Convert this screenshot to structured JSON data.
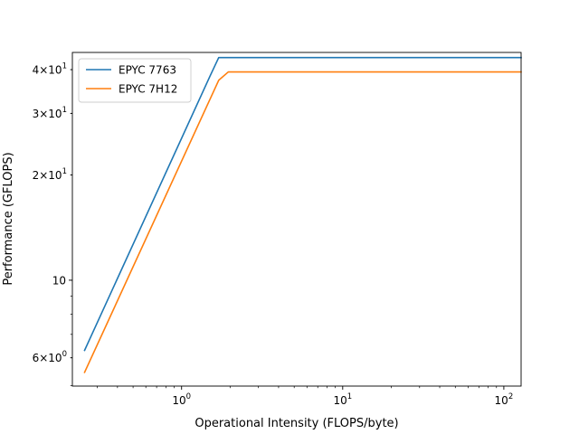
{
  "chart_data": {
    "type": "line",
    "title": "",
    "xlabel": "Operational Intensity (FLOPS/byte)",
    "ylabel": "Performance (GFLOPS)",
    "xscale": "log",
    "yscale": "log",
    "xlim": [
      0.21,
      128
    ],
    "ylim": [
      4.98,
      44.8
    ],
    "grid": false,
    "legend_position": "upper left",
    "x_major_ticks": [
      {
        "value": 1,
        "base": "10",
        "exp": "0"
      },
      {
        "value": 10,
        "base": "10",
        "exp": "1"
      },
      {
        "value": 100,
        "base": "10",
        "exp": "2"
      }
    ],
    "y_ticks": [
      {
        "value": 6,
        "mantissa": "6",
        "exp": "0",
        "kind": "sci"
      },
      {
        "value": 10,
        "text": "10",
        "kind": "plain"
      },
      {
        "value": 20,
        "mantissa": "2",
        "exp": "1",
        "kind": "sci"
      },
      {
        "value": 30,
        "mantissa": "3",
        "exp": "1",
        "kind": "sci"
      },
      {
        "value": 40,
        "mantissa": "4",
        "exp": "1",
        "kind": "sci"
      }
    ],
    "series": [
      {
        "name": "EPYC 7763",
        "color": "#1f77b4",
        "x": [
          0.25,
          1.5,
          1.7,
          128
        ],
        "y": [
          6.3,
          38.3,
          43.3,
          43.3
        ]
      },
      {
        "name": "EPYC 7H12",
        "color": "#ff7f0e",
        "x": [
          0.25,
          1.7,
          1.95,
          128
        ],
        "y": [
          5.45,
          37.3,
          39.4,
          39.4
        ]
      }
    ]
  }
}
